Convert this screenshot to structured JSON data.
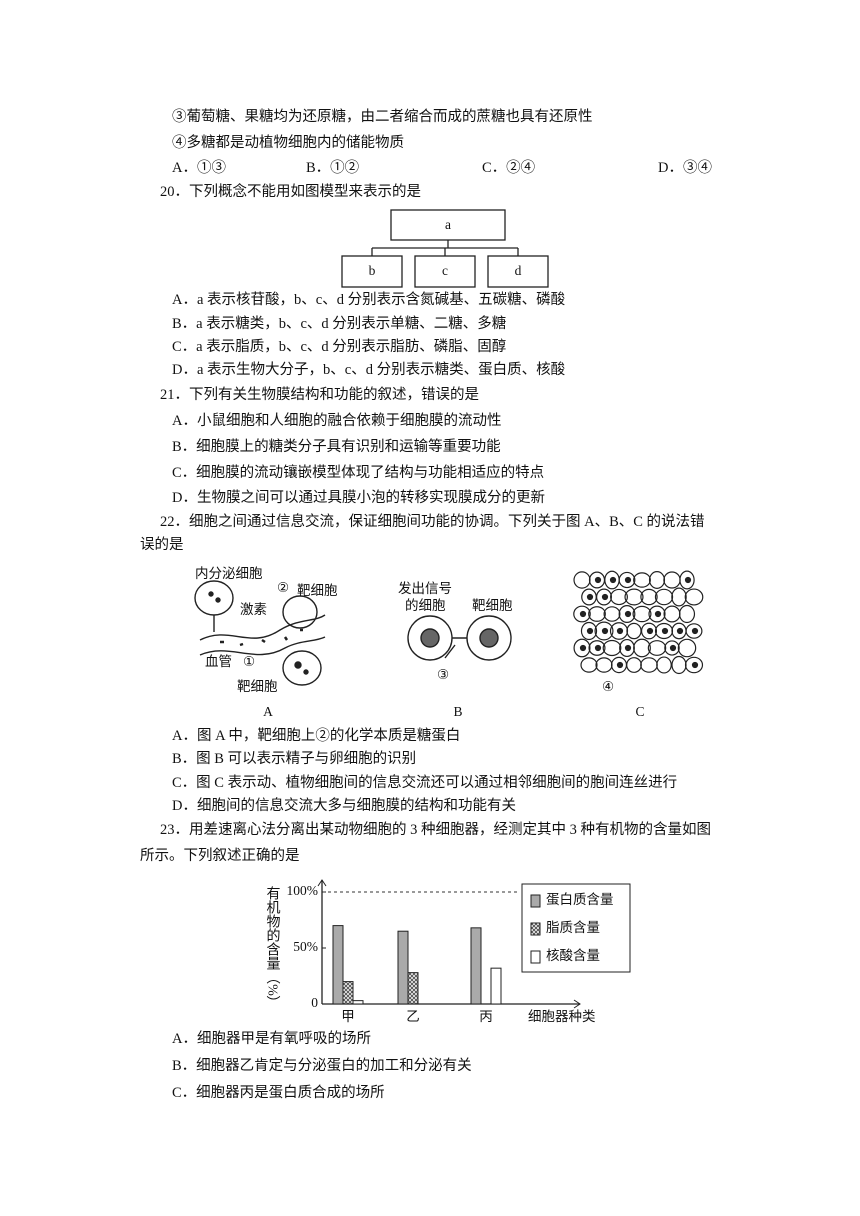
{
  "q19": {
    "statements": [
      "③葡萄糖、果糖均为还原糖，由二者缩合而成的蔗糖也具有还原性",
      "④多糖都是动植物细胞内的储能物质"
    ],
    "options": [
      "A．①③",
      "B．①②",
      "C．②④",
      "D．③④"
    ]
  },
  "q20": {
    "stem": "20．下列概念不能用如图模型来表示的是",
    "diagram": {
      "nodes": [
        "a",
        "b",
        "c",
        "d"
      ]
    },
    "options": [
      "A．a 表示核苷酸，b、c、d 分别表示含氮碱基、五碳糖、磷酸",
      "B．a 表示糖类，b、c、d 分别表示单糖、二糖、多糖",
      "C．a 表示脂质，b、c、d 分别表示脂肪、磷脂、固醇",
      "D．a 表示生物大分子，b、c、d 分别表示糖类、蛋白质、核酸"
    ]
  },
  "q21": {
    "stem": "21．下列有关生物膜结构和功能的叙述，错误的是",
    "options": [
      "A．小鼠细胞和人细胞的融合依赖于细胞膜的流动性",
      "B．细胞膜上的糖类分子具有识别和运输等重要功能",
      "C．细胞膜的流动镶嵌模型体现了结构与功能相适应的特点",
      "D．生物膜之间可以通过具膜小泡的转移实现膜成分的更新"
    ]
  },
  "q22": {
    "stem_lines": [
      "22．细胞之间通过信息交流，保证细胞间功能的协调。下列关于图 A、B、C 的说法错",
      "误的是"
    ],
    "figure_a": {
      "labels": [
        "内分泌细胞",
        "②",
        "靶细胞",
        "激素",
        "血管",
        "①",
        "靶细胞"
      ],
      "caption": "A"
    },
    "figure_b": {
      "labels": [
        "发出信号",
        "的细胞",
        "靶细胞",
        "③"
      ],
      "caption": "B"
    },
    "figure_c": {
      "labels": [
        "④"
      ],
      "caption": "C"
    },
    "options": [
      "A．图 A 中，靶细胞上②的化学本质是糖蛋白",
      "B．图 B 可以表示精子与卵细胞的识别",
      "C．图 C 表示动、植物细胞间的信息交流还可以通过相邻细胞间的胞间连丝进行",
      "D．细胞间的信息交流大多与细胞膜的结构和功能有关"
    ]
  },
  "q23": {
    "stem_lines": [
      "23．用差速离心法分离出某动物细胞的 3 种细胞器，经测定其中 3 种有机物的含量如图",
      "所示。下列叙述正确的是"
    ],
    "chart": {
      "type": "bar",
      "y_label": "有机物的含量（%）",
      "x_label": "细胞器种类",
      "categories": [
        "甲",
        "乙",
        "丙"
      ],
      "series": [
        {
          "name": "蛋白质含量",
          "color": "#aaaaaa",
          "values": [
            70,
            65,
            68
          ]
        },
        {
          "name": "脂质含量",
          "color": "#555555",
          "values": [
            20,
            28,
            0
          ]
        },
        {
          "name": "核酸含量",
          "color": "#ffffff",
          "values": [
            3,
            0,
            32
          ]
        }
      ],
      "ylim": [
        0,
        100
      ],
      "yticks": [
        0,
        {
          "value": 50,
          "label": "50%"
        },
        {
          "value": 100,
          "label": "100%"
        }
      ],
      "reference_line": 100
    },
    "options": [
      "A．细胞器甲是有氧呼吸的场所",
      "B．细胞器乙肯定与分泌蛋白的加工和分泌有关",
      "C．细胞器丙是蛋白质合成的场所"
    ]
  }
}
